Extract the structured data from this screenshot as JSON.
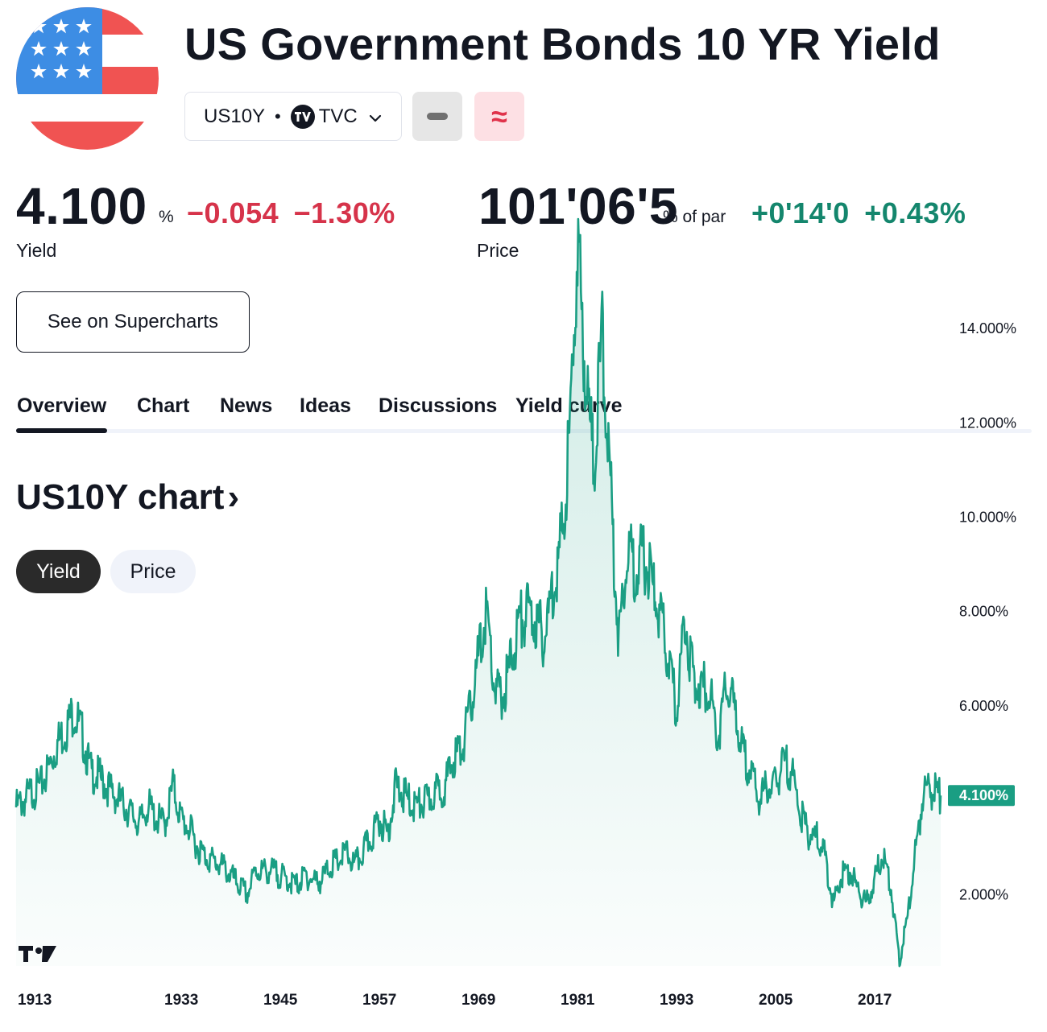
{
  "header": {
    "title": "US Government Bonds 10 YR Yield",
    "symbol": "US10Y",
    "exchange": "TVC",
    "logo_mark": "TV",
    "flag_icon": "us-flag-icon",
    "colors": {
      "flag_blue": "#3d8de4",
      "flag_red": "#f05352"
    }
  },
  "quote": {
    "yield_value": "4.100",
    "yield_unit": "%",
    "yield_change": "−0.054",
    "yield_change_pct": "−1.30%",
    "yield_label": "Yield",
    "price_value": "101'06'5",
    "price_unit": "% of par",
    "price_change": "+0'14'0",
    "price_change_pct": "+0.43%",
    "price_label": "Price",
    "colors": {
      "negative": "#d6334a",
      "positive": "#14866d"
    }
  },
  "supercharts_button": "See on Supercharts",
  "tabs": [
    {
      "label": "Overview",
      "active": true
    },
    {
      "label": "Chart",
      "active": false
    },
    {
      "label": "News",
      "active": false
    },
    {
      "label": "Ideas",
      "active": false
    },
    {
      "label": "Discussions",
      "active": false
    },
    {
      "label": "Yield curve",
      "active": false
    }
  ],
  "section": {
    "title": "US10Y chart",
    "arrow": "›"
  },
  "toggle": {
    "yield": "Yield",
    "price": "Price",
    "active": "yield"
  },
  "chart_data": {
    "type": "area",
    "series": [
      {
        "values_by_year": [
          [
            1913,
            3.85
          ],
          [
            1914,
            4.0
          ],
          [
            1915,
            4.2
          ],
          [
            1916,
            4.3
          ],
          [
            1917,
            4.7
          ],
          [
            1918,
            5.2
          ],
          [
            1919,
            5.5
          ],
          [
            1920,
            5.9
          ],
          [
            1921,
            5.4
          ],
          [
            1922,
            4.6
          ],
          [
            1923,
            4.5
          ],
          [
            1924,
            4.3
          ],
          [
            1925,
            4.1
          ],
          [
            1926,
            3.9
          ],
          [
            1927,
            3.7
          ],
          [
            1928,
            3.5
          ],
          [
            1929,
            3.9
          ],
          [
            1930,
            3.6
          ],
          [
            1931,
            3.5
          ],
          [
            1932,
            4.3
          ],
          [
            1933,
            3.6
          ],
          [
            1934,
            3.4
          ],
          [
            1935,
            3.0
          ],
          [
            1936,
            2.8
          ],
          [
            1937,
            2.7
          ],
          [
            1938,
            2.6
          ],
          [
            1939,
            2.4
          ],
          [
            1940,
            2.2
          ],
          [
            1941,
            2.0
          ],
          [
            1942,
            2.5
          ],
          [
            1943,
            2.5
          ],
          [
            1944,
            2.5
          ],
          [
            1945,
            2.4
          ],
          [
            1946,
            2.3
          ],
          [
            1947,
            2.2
          ],
          [
            1948,
            2.4
          ],
          [
            1949,
            2.3
          ],
          [
            1950,
            2.3
          ],
          [
            1951,
            2.6
          ],
          [
            1952,
            2.7
          ],
          [
            1953,
            2.9
          ],
          [
            1954,
            2.6
          ],
          [
            1955,
            2.9
          ],
          [
            1956,
            3.2
          ],
          [
            1957,
            3.6
          ],
          [
            1958,
            3.3
          ],
          [
            1959,
            4.3
          ],
          [
            1960,
            4.1
          ],
          [
            1961,
            3.9
          ],
          [
            1962,
            3.9
          ],
          [
            1963,
            4.0
          ],
          [
            1964,
            4.2
          ],
          [
            1965,
            4.3
          ],
          [
            1966,
            4.9
          ],
          [
            1967,
            5.1
          ],
          [
            1968,
            5.9
          ],
          [
            1969,
            7.0
          ],
          [
            1970,
            8.0
          ],
          [
            1971,
            6.3
          ],
          [
            1972,
            6.2
          ],
          [
            1973,
            7.0
          ],
          [
            1974,
            7.8
          ],
          [
            1975,
            8.0
          ],
          [
            1976,
            7.8
          ],
          [
            1977,
            7.4
          ],
          [
            1978,
            8.5
          ],
          [
            1979,
            9.4
          ],
          [
            1980,
            11.5
          ],
          [
            1981,
            15.8
          ],
          [
            1982,
            13.0
          ],
          [
            1983,
            11.1
          ],
          [
            1984,
            13.9
          ],
          [
            1985,
            10.6
          ],
          [
            1986,
            7.4
          ],
          [
            1987,
            9.4
          ],
          [
            1988,
            8.9
          ],
          [
            1989,
            9.2
          ],
          [
            1990,
            8.6
          ],
          [
            1991,
            7.9
          ],
          [
            1992,
            7.0
          ],
          [
            1993,
            5.9
          ],
          [
            1994,
            7.9
          ],
          [
            1995,
            6.6
          ],
          [
            1996,
            6.4
          ],
          [
            1997,
            6.4
          ],
          [
            1998,
            5.3
          ],
          [
            1999,
            6.4
          ],
          [
            2000,
            6.0
          ],
          [
            2001,
            5.0
          ],
          [
            2002,
            4.6
          ],
          [
            2003,
            4.0
          ],
          [
            2004,
            4.3
          ],
          [
            2005,
            4.3
          ],
          [
            2006,
            4.8
          ],
          [
            2007,
            4.6
          ],
          [
            2008,
            3.7
          ],
          [
            2009,
            3.3
          ],
          [
            2010,
            3.2
          ],
          [
            2011,
            2.8
          ],
          [
            2012,
            1.8
          ],
          [
            2013,
            2.4
          ],
          [
            2014,
            2.5
          ],
          [
            2015,
            2.1
          ],
          [
            2016,
            1.8
          ],
          [
            2017,
            2.3
          ],
          [
            2018,
            2.9
          ],
          [
            2019,
            2.1
          ],
          [
            2020,
            0.6
          ],
          [
            2021,
            1.5
          ],
          [
            2022,
            3.0
          ],
          [
            2023,
            4.3
          ],
          [
            2024,
            4.2
          ],
          [
            2025,
            4.1
          ]
        ]
      }
    ],
    "x_ticks": [
      "1913",
      "1933",
      "1945",
      "1957",
      "1969",
      "1981",
      "1993",
      "2005",
      "2017"
    ],
    "y_ticks": [
      "2.000%",
      "6.000%",
      "8.000%",
      "10.000%",
      "12.000%",
      "14.000%"
    ],
    "last_value_label": "4.100%",
    "ylim": [
      0,
      16
    ],
    "xlim": [
      1913,
      2025
    ],
    "grid": false,
    "colors": {
      "line": "#1a9e83",
      "label_bg": "#1a9e83"
    },
    "watermark": "TV"
  }
}
